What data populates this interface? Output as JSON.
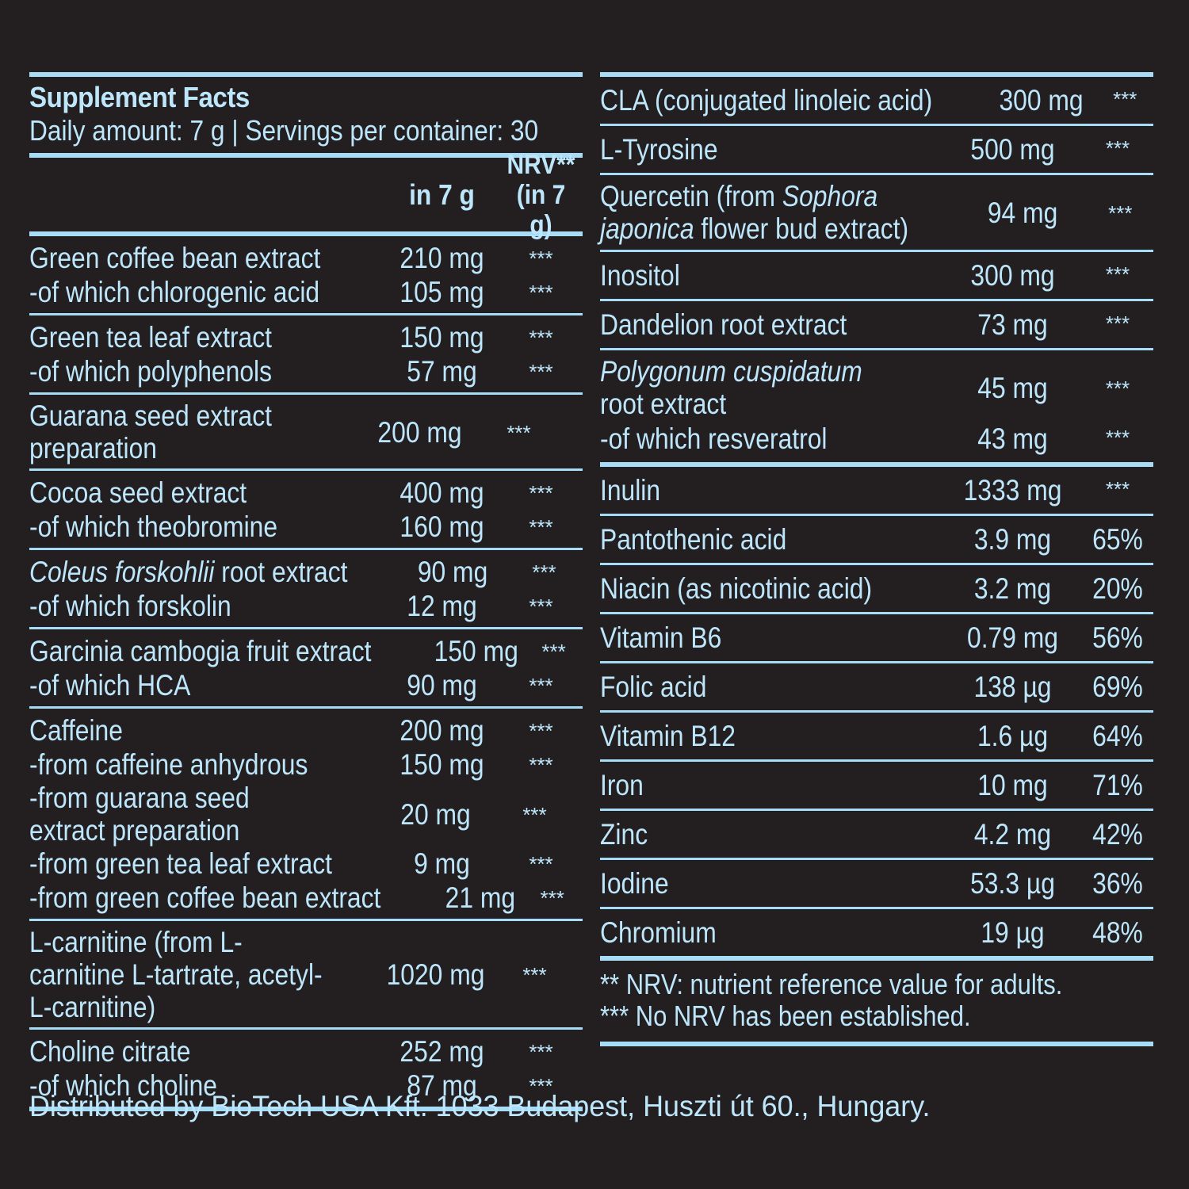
{
  "header": {
    "title": "Supplement Facts",
    "subtitle": "Daily amount: 7 g | Servings per container: 30"
  },
  "columns": {
    "amount": "in 7 g",
    "nrv_line1": "NRV**",
    "nrv_line2": "(in 7 g)"
  },
  "left_rows": [
    {
      "name": "Green coffee bean extract",
      "amount": "210 mg",
      "nrv": "***"
    },
    {
      "name": "-of which chlorogenic acid",
      "amount": "105 mg",
      "nrv": "***"
    },
    {
      "name": "Green tea leaf extract",
      "amount": "150 mg",
      "nrv": "***"
    },
    {
      "name": "-of which polyphenols",
      "amount": "57 mg",
      "nrv": "***"
    },
    {
      "name": "Guarana seed extract preparation",
      "amount": "200 mg",
      "nrv": "***"
    },
    {
      "name": "Cocoa seed extract",
      "amount": "400 mg",
      "nrv": "***"
    },
    {
      "name": "-of which theobromine",
      "amount": "160 mg",
      "nrv": "***"
    },
    {
      "name_italic": "Coleus forskohlii",
      "name_rest": " root extract",
      "amount": "90 mg",
      "nrv": "***"
    },
    {
      "name": "-of which forskolin",
      "amount": "12 mg",
      "nrv": "***"
    },
    {
      "name": "Garcinia cambogia fruit extract",
      "amount": "150 mg",
      "nrv": "***"
    },
    {
      "name": "-of which HCA",
      "amount": "90 mg",
      "nrv": "***"
    },
    {
      "name": "Caffeine",
      "amount": "200 mg",
      "nrv": "***"
    },
    {
      "name": "-from caffeine anhydrous",
      "amount": "150 mg",
      "nrv": "***"
    },
    {
      "name": "-from guarana seed extract preparation",
      "amount": "20 mg",
      "nrv": "***"
    },
    {
      "name": "-from green tea leaf extract",
      "amount": "9 mg",
      "nrv": "***"
    },
    {
      "name": "-from green coffee bean extract",
      "amount": "21 mg",
      "nrv": "***"
    },
    {
      "name": "L-carnitine (from L-carnitine L-tartrate, acetyl-L-carnitine)",
      "amount": "1020 mg",
      "nrv": "***"
    },
    {
      "name": "Choline citrate",
      "amount": "252 mg",
      "nrv": "***"
    },
    {
      "name": "-of which choline",
      "amount": "87 mg",
      "nrv": "***"
    }
  ],
  "right_rows": [
    {
      "name": "CLA (conjugated linoleic acid)",
      "amount": "300 mg",
      "nrv": "***"
    },
    {
      "name": "L-Tyrosine",
      "amount": "500 mg",
      "nrv": "***"
    },
    {
      "name_pre": "Quercetin (from ",
      "name_italic1": "Sophora",
      "name_italic2": "japonica",
      "name_rest": " flower bud extract)",
      "amount": "94 mg",
      "nrv": "***"
    },
    {
      "name": "Inositol",
      "amount": "300 mg",
      "nrv": "***"
    },
    {
      "name": "Dandelion root extract",
      "amount": "73 mg",
      "nrv": "***"
    },
    {
      "name_italic": "Polygonum cuspidatum",
      "name_rest": "root extract",
      "amount": "45 mg",
      "nrv": "***"
    },
    {
      "name": "-of which resveratrol",
      "amount": "43 mg",
      "nrv": "***"
    },
    {
      "name": "Inulin",
      "amount": "1333 mg",
      "nrv": "***"
    },
    {
      "name": "Pantothenic acid",
      "amount": "3.9 mg",
      "nrv": "65%"
    },
    {
      "name": "Niacin (as nicotinic acid)",
      "amount": "3.2 mg",
      "nrv": "20%"
    },
    {
      "name": "Vitamin B6",
      "amount": "0.79 mg",
      "nrv": "56%"
    },
    {
      "name": "Folic acid",
      "amount": "138 µg",
      "nrv": "69%"
    },
    {
      "name": "Vitamin B12",
      "amount": "1.6 µg",
      "nrv": "64%"
    },
    {
      "name": "Iron",
      "amount": "10 mg",
      "nrv": "71%"
    },
    {
      "name": "Zinc",
      "amount": "4.2 mg",
      "nrv": "42%"
    },
    {
      "name": "Iodine",
      "amount": "53.3 µg",
      "nrv": "36%"
    },
    {
      "name": "Chromium",
      "amount": "19 µg",
      "nrv": "48%"
    }
  ],
  "footnotes": {
    "nrv": "** NRV: nutrient reference value for adults.",
    "no_nrv": "*** No NRV has been established."
  },
  "distributor": "Distributed by BioTech USA Kft. 1033 Budapest, Huszti út 60., Hungary.",
  "colors": {
    "background": "#231f20",
    "text": "#bde6fb",
    "rule": "#a6dcf6"
  }
}
